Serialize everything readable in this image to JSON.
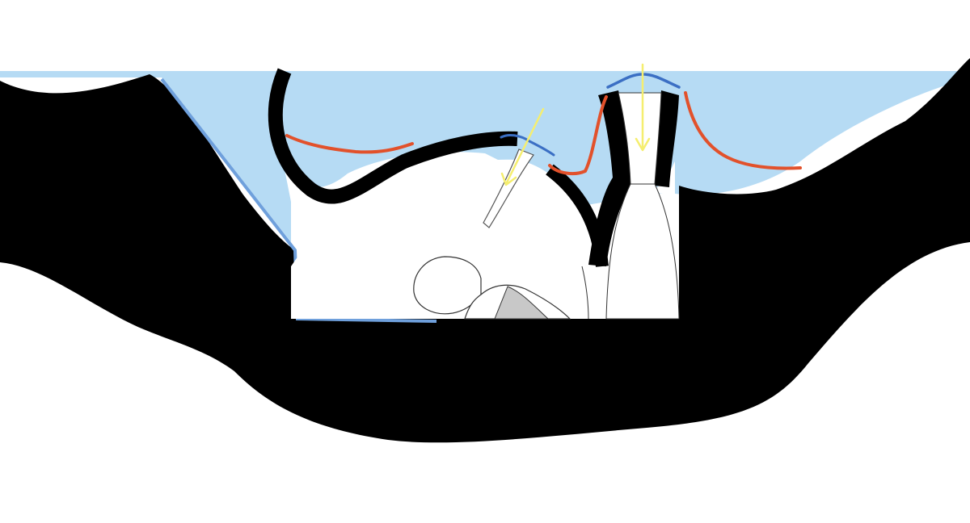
{
  "diagram": {
    "type": "cross-section sketch",
    "labels": [],
    "colors": {
      "background": "#ffffff",
      "water": "#b6dbf4",
      "water_edge": "#6fa0dc",
      "solid_fill": "#000000",
      "cavity": "#ffffff",
      "surface_curve": "#e2512b",
      "cap_outline": "#3b6fc4",
      "flow_arrows": "#f5ee6f",
      "shaded_wedge": "#c8c8c8"
    },
    "elements": [
      {
        "id": "water-region",
        "kind": "fill",
        "color_key": "water"
      },
      {
        "id": "dark-mass",
        "kind": "fill",
        "color_key": "solid_fill"
      },
      {
        "id": "internal-cavity",
        "kind": "fill",
        "color_key": "cavity"
      },
      {
        "id": "large-opening",
        "kind": "tube"
      },
      {
        "id": "small-opening",
        "kind": "tube"
      },
      {
        "id": "red-surface-curves",
        "kind": "curve",
        "count": 3
      },
      {
        "id": "blue-caps",
        "kind": "curve",
        "count": 2
      },
      {
        "id": "yellow-arrows",
        "kind": "arrow",
        "count": 2,
        "direction": "downward"
      }
    ]
  }
}
